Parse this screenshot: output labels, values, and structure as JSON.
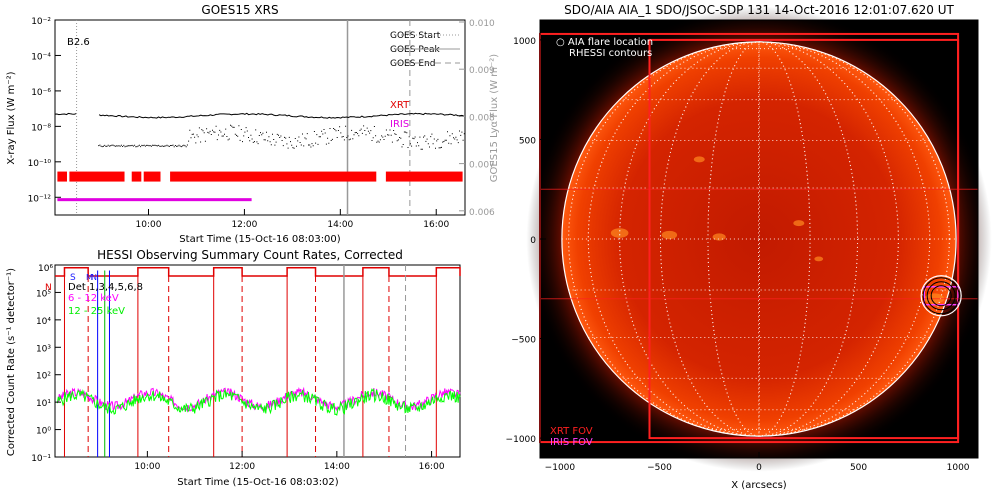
{
  "chart_data": [
    {
      "type": "line",
      "title": "GOES15 XRS",
      "xlabel": "Start Time (15-Oct-16 08:03:00)",
      "ylabel": "X-ray Flux (W m⁻²)",
      "y2label": "GOES15 Lyα Flux (W m⁻²)",
      "x_ticks": [
        "10:00",
        "12:00",
        "14:00",
        "16:00"
      ],
      "y_ticks": [
        "10⁻²",
        "10⁻⁴",
        "10⁻⁶",
        "10⁻⁸",
        "10⁻¹⁰",
        "10⁻¹²"
      ],
      "y2_ticks": [
        "0.010",
        "0.009",
        "0.008",
        "0.007",
        "0.006"
      ],
      "annotations": [
        "B2.6",
        "XRT",
        "IRIS"
      ],
      "legend": [
        "GOES Start",
        "GOES Peak",
        "GOES End"
      ],
      "xlim_hours": [
        8.05,
        16.6
      ],
      "ylim_log10": [
        -13,
        -2
      ],
      "xrs_long_log10": -7.4,
      "xrs_gap_hours": [
        8.5,
        8.95
      ],
      "goes_start_hour": 8.5,
      "goes_peak_hour": 14.15,
      "goes_end_hour": 15.45,
      "xrt_segments_hours": [
        [
          8.1,
          8.3
        ],
        [
          8.35,
          9.5
        ],
        [
          9.65,
          9.85
        ],
        [
          9.9,
          10.25
        ],
        [
          10.45,
          14.75
        ],
        [
          14.95,
          16.55
        ]
      ],
      "iris_segment_hours": [
        8.1,
        12.15
      ]
    },
    {
      "type": "line",
      "title": "HESSI Observing Summary Count Rates, Corrected",
      "xlabel": "Start Time (15-Oct-16 08:03:02)",
      "ylabel": "Corrected Count Rate (s⁻¹ detector⁻¹)",
      "x_ticks": [
        "10:00",
        "12:00",
        "14:00",
        "16:00"
      ],
      "y_ticks": [
        "10⁵",
        "10⁴",
        "10³",
        "10²",
        "10¹",
        "10⁰",
        "10⁻¹"
      ],
      "top_label": "10⁶",
      "flags": [
        "S",
        "N"
      ],
      "flag_markers": [
        "M",
        "N"
      ],
      "series": [
        {
          "name": "Det 1,3,4,5,6,8",
          "color": "#000000"
        },
        {
          "name": "6 - 12 keV",
          "color": "#ff00ff"
        },
        {
          "name": "12 - 25 keV",
          "color": "#00ff00"
        }
      ],
      "xlim_hours": [
        8.05,
        16.6
      ],
      "ylim_log10": [
        -1,
        6
      ],
      "night_intervals_hours": [
        [
          8.25,
          8.75
        ],
        [
          9.8,
          10.45
        ],
        [
          11.4,
          12.0
        ],
        [
          12.95,
          13.55
        ],
        [
          14.55,
          15.1
        ],
        [
          16.1,
          16.6
        ]
      ],
      "baseline_6_12": 1.1,
      "baseline_12_25": 1.0
    },
    {
      "type": "scatter",
      "title": "SDO/AIA AIA_1 SDO/JSOC-SDP 131 14-Oct-2016 12:01:07.620 UT",
      "xlabel": "X (arcsecs)",
      "x_ticks": [
        "−1000",
        "−500",
        "0",
        "500",
        "1000"
      ],
      "y_ticks": [
        "1000",
        "500",
        "0",
        "−500",
        "−1000"
      ],
      "legend": [
        "○ AIA flare location",
        "RHESSI contours"
      ],
      "fov_labels": [
        "XRT FOV",
        "IRIS FOV"
      ],
      "xlim_arcsec": [
        -1100,
        1100
      ],
      "ylim_arcsec": [
        -1100,
        1100
      ],
      "solar_radius_arcsec": 990,
      "flare_location_arcsec": [
        915,
        -285
      ],
      "xrt_fov_arcsec": [
        [
          -1100,
          1030,
          1000,
          -1020
        ],
        [
          -550,
          1000,
          1000,
          -1000
        ]
      ],
      "iris_fov_arcsec": [
        [
          830,
          -240,
          1000,
          -330
        ]
      ]
    }
  ]
}
